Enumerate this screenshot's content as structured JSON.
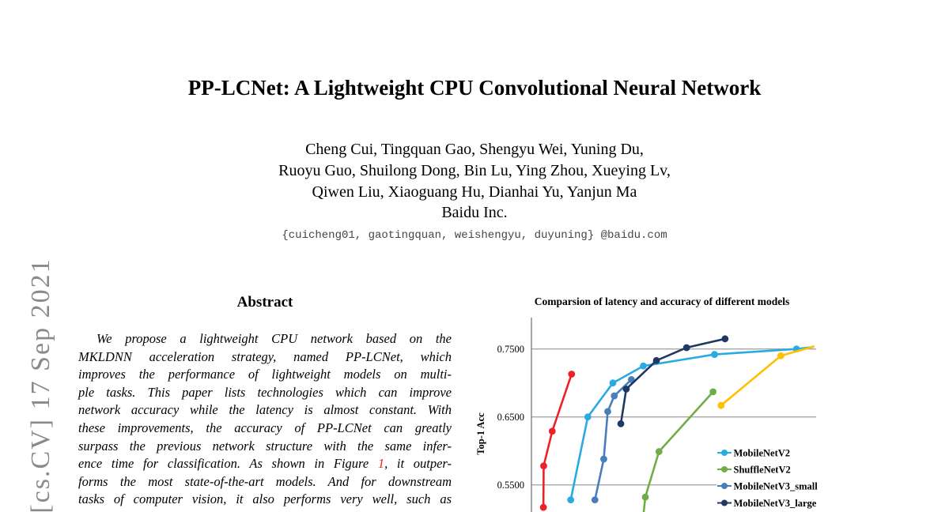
{
  "arxiv_stamp": "[cs.CV] 17 Sep 2021",
  "paper": {
    "title": "PP-LCNet: A Lightweight CPU Convolutional Neural Network",
    "author_lines": [
      "Cheng Cui, Tingquan Gao, Shengyu Wei, Yuning Du,",
      "Ruoyu Guo, Shuilong Dong, Bin Lu, Ying Zhou, Xueying Lv,",
      "Qiwen Liu, Xiaoguang Hu, Dianhai Yu, Yanjun Ma",
      "Baidu Inc."
    ],
    "email_line": "{cuicheng01, gaotingquan, weishengyu, duyuning} @baidu.com",
    "abstract": {
      "heading": "Abstract",
      "lines_before": [
        "We propose a lightweight CPU network based on the",
        "MKLDNN acceleration strategy, named PP-LCNet, which",
        "improves the performance of lightweight models on multi-",
        "ple tasks. This paper lists technologies which can improve",
        "network accuracy while the latency is almost constant. With",
        "these improvements, the accuracy of PP-LCNet can greatly",
        "surpass the previous network structure with the same infer-"
      ],
      "line_with_ref_pre": "ence time for classification. As shown in Figure ",
      "figure_ref": "1",
      "line_with_ref_post": ", it outper-",
      "lines_after": [
        "forms the most state-of-the-art models. And for downstream",
        "tasks of computer vision, it also performs very well, such as"
      ]
    }
  },
  "chart_data": {
    "type": "line",
    "title": "Comparsion of latency and accuracy of different models",
    "ylabel": "Top-1 Acc",
    "x_axis": "not visible (figure cut off at bottom of screenshot); x values are fractions of visible plot width",
    "y_ticks": [
      "0.7500",
      "0.6500",
      "0.5500"
    ],
    "y_tick_values": [
      0.75,
      0.65,
      0.55
    ],
    "ylim_visible": [
      0.51,
      0.78
    ],
    "grid": true,
    "legend_position": "bottom-right",
    "legend": [
      "MobileNetV2",
      "ShuffleNetV2",
      "MobileNetV3_small",
      "MobileNetV3_large"
    ],
    "legend_colors": [
      "#29abe2",
      "#70ad47",
      "#4a7ebb",
      "#1f3864"
    ],
    "series": [
      {
        "name": "MobileNetV2",
        "color": "#29abe2",
        "points": [
          [
            0.138,
            0.528
          ],
          [
            0.198,
            0.65
          ],
          [
            0.286,
            0.7
          ],
          [
            0.393,
            0.725
          ],
          [
            0.643,
            0.742
          ],
          [
            0.931,
            0.75
          ]
        ],
        "tail": [
          [
            0.99,
            0.753
          ]
        ]
      },
      {
        "name": "MobileNetV3_small",
        "color": "#4a7ebb",
        "points": [
          [
            0.223,
            0.528
          ],
          [
            0.254,
            0.588
          ],
          [
            0.268,
            0.658
          ],
          [
            0.291,
            0.681
          ],
          [
            0.351,
            0.705
          ]
        ]
      },
      {
        "name": "ShuffleNetV2",
        "color": "#70ad47",
        "lead": [
          [
            0.393,
            0.505
          ]
        ],
        "points": [
          [
            0.4,
            0.532
          ],
          [
            0.448,
            0.599
          ],
          [
            0.638,
            0.687
          ]
        ]
      },
      {
        "name": "unlabeled-yellow (legend cut off)",
        "color": "#ffc000",
        "points": [
          [
            0.666,
            0.667
          ],
          [
            0.876,
            0.74
          ]
        ],
        "tail": [
          [
            0.994,
            0.754
          ]
        ]
      },
      {
        "name": "MobileNetV3_large",
        "color": "#1f3864",
        "points": [
          [
            0.314,
            0.64
          ],
          [
            0.333,
            0.691
          ],
          [
            0.439,
            0.733
          ],
          [
            0.545,
            0.752
          ],
          [
            0.68,
            0.765
          ]
        ]
      },
      {
        "name": "unlabeled-red (legend cut off)",
        "color": "#ec2227",
        "points": [
          [
            0.042,
            0.517
          ],
          [
            0.043,
            0.578
          ],
          [
            0.073,
            0.629
          ],
          [
            0.141,
            0.713
          ]
        ]
      }
    ]
  }
}
